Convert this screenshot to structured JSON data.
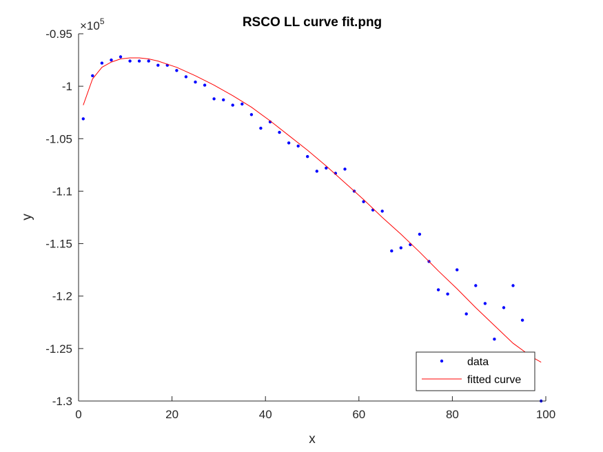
{
  "chart_data": {
    "type": "scatter",
    "title": "RSCO LL curve fit.png",
    "xlabel": "x",
    "ylabel": "y",
    "exponent_label": "×10",
    "exponent_power": "5",
    "xlim": [
      0,
      100
    ],
    "ylim": [
      -1.3,
      -0.95
    ],
    "y_unit_scale": 100000,
    "xticks": [
      0,
      20,
      40,
      60,
      80,
      100
    ],
    "xtick_labels": [
      "0",
      "20",
      "40",
      "60",
      "80",
      "100"
    ],
    "yticks": [
      -0.95,
      -1.0,
      -1.05,
      -1.1,
      -1.15,
      -1.2,
      -1.25,
      -1.3
    ],
    "ytick_labels": [
      "-0.95",
      "-1",
      "-1.05",
      "-1.1",
      "-1.15",
      "-1.2",
      "-1.25",
      "-1.3"
    ],
    "grid": false,
    "legend_position": "bottom-right",
    "series": [
      {
        "name": "data",
        "kind": "markers",
        "color": "#0000ff",
        "x": [
          1,
          3,
          5,
          7,
          9,
          11,
          13,
          15,
          17,
          19,
          21,
          23,
          25,
          27,
          29,
          31,
          33,
          35,
          37,
          39,
          41,
          43,
          45,
          47,
          49,
          51,
          53,
          55,
          57,
          59,
          61,
          63,
          65,
          67,
          69,
          71,
          73,
          75,
          77,
          79,
          81,
          83,
          85,
          87,
          89,
          91,
          93,
          95,
          97,
          99
        ],
        "y": [
          -1.031,
          -0.99,
          -0.978,
          -0.975,
          -0.972,
          -0.976,
          -0.976,
          -0.976,
          -0.98,
          -0.98,
          -0.985,
          -0.991,
          -0.996,
          -0.999,
          -1.012,
          -1.013,
          -1.018,
          -1.017,
          -1.027,
          -1.04,
          -1.034,
          -1.044,
          -1.054,
          -1.057,
          -1.067,
          -1.081,
          -1.078,
          -1.083,
          -1.079,
          -1.1,
          -1.11,
          -1.118,
          -1.119,
          -1.157,
          -1.154,
          -1.151,
          -1.141,
          -1.167,
          -1.194,
          -1.198,
          -1.175,
          -1.217,
          -1.19,
          -1.207,
          -1.241,
          -1.211,
          -1.19,
          -1.223,
          -1.256,
          -1.3
        ]
      },
      {
        "name": "fitted curve",
        "kind": "line",
        "color": "#ff0000",
        "x": [
          1,
          3,
          5,
          7,
          9,
          11,
          13,
          15,
          17,
          19,
          21,
          25,
          29,
          33,
          37,
          41,
          45,
          49,
          53,
          57,
          61,
          65,
          69,
          73,
          77,
          81,
          85,
          89,
          93,
          97,
          99
        ],
        "y": [
          -1.018,
          -0.993,
          -0.982,
          -0.977,
          -0.974,
          -0.973,
          -0.973,
          -0.974,
          -0.976,
          -0.979,
          -0.982,
          -0.99,
          -0.999,
          -1.009,
          -1.02,
          -1.033,
          -1.047,
          -1.061,
          -1.076,
          -1.092,
          -1.108,
          -1.125,
          -1.141,
          -1.158,
          -1.176,
          -1.193,
          -1.211,
          -1.228,
          -1.245,
          -1.258,
          -1.263
        ]
      }
    ]
  }
}
